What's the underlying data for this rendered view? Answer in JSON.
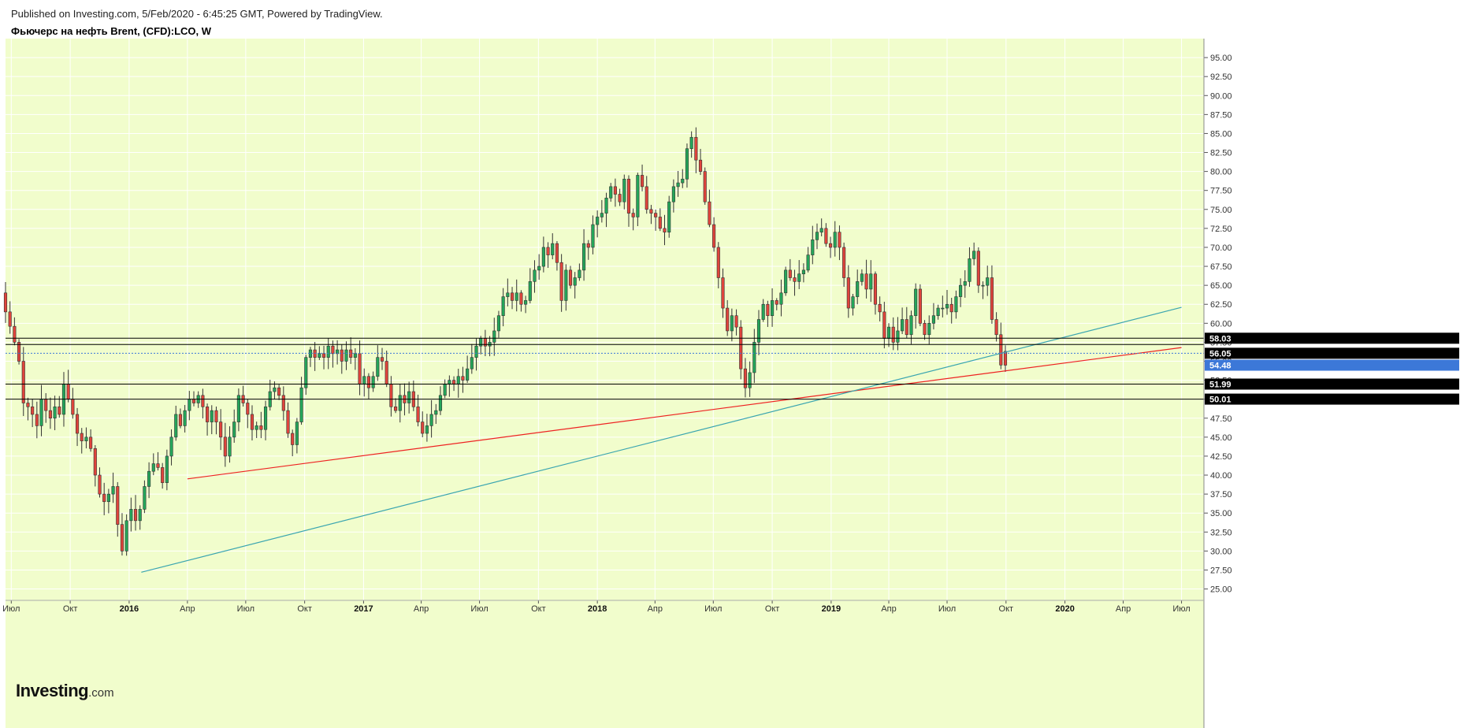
{
  "header": {
    "published": "Published on Investing.com, 5/Feb/2020 - 6:45:25 GMT, Powered by TradingView.",
    "title": "Фьючерс на нефть Brent, (CFD):LCO, W"
  },
  "logo": {
    "brand": "Investing",
    "suffix": ".com"
  },
  "colors": {
    "background": "#f1fdcc",
    "up": "#24a65a",
    "down": "#e0443c",
    "trend_red": "#ee2222",
    "trend_teal": "#3aa5b0",
    "level": "#000000",
    "current_price": "#3c78d8"
  },
  "chart_data": {
    "type": "candlestick",
    "x_ticks": [
      {
        "date": "2015-07-01",
        "label": "Июл",
        "year": false
      },
      {
        "date": "2015-10-01",
        "label": "Окт",
        "year": false
      },
      {
        "date": "2016-01-01",
        "label": "2016",
        "year": true
      },
      {
        "date": "2016-04-01",
        "label": "Апр",
        "year": false
      },
      {
        "date": "2016-07-01",
        "label": "Июл",
        "year": false
      },
      {
        "date": "2016-10-01",
        "label": "Окт",
        "year": false
      },
      {
        "date": "2017-01-01",
        "label": "2017",
        "year": true
      },
      {
        "date": "2017-04-01",
        "label": "Апр",
        "year": false
      },
      {
        "date": "2017-07-01",
        "label": "Июл",
        "year": false
      },
      {
        "date": "2017-10-01",
        "label": "Окт",
        "year": false
      },
      {
        "date": "2018-01-01",
        "label": "2018",
        "year": true
      },
      {
        "date": "2018-04-01",
        "label": "Апр",
        "year": false
      },
      {
        "date": "2018-07-01",
        "label": "Июл",
        "year": false
      },
      {
        "date": "2018-10-01",
        "label": "Окт",
        "year": false
      },
      {
        "date": "2019-01-01",
        "label": "2019",
        "year": true
      },
      {
        "date": "2019-04-01",
        "label": "Апр",
        "year": false
      },
      {
        "date": "2019-07-01",
        "label": "Июл",
        "year": false
      },
      {
        "date": "2019-10-01",
        "label": "Окт",
        "year": false
      },
      {
        "date": "2020-01-01",
        "label": "2020",
        "year": true
      },
      {
        "date": "2020-04-01",
        "label": "Апр",
        "year": false
      },
      {
        "date": "2020-07-01",
        "label": "Июл",
        "year": false
      }
    ],
    "x_range": [
      "2015-06-22",
      "2020-08-05"
    ],
    "y_range": [
      23.5,
      97.5
    ],
    "y_ticks": [
      "25.00",
      "27.50",
      "30.00",
      "32.50",
      "35.00",
      "37.50",
      "40.00",
      "42.50",
      "45.00",
      "47.50",
      "50.00",
      "52.50",
      "55.00",
      "57.50",
      "60.00",
      "62.50",
      "65.00",
      "67.50",
      "70.00",
      "72.50",
      "75.00",
      "77.50",
      "80.00",
      "82.50",
      "85.00",
      "87.50",
      "90.00",
      "92.50",
      "95.00"
    ],
    "closes": [
      61.5,
      59.6,
      57.5,
      55.0,
      49.5,
      49.0,
      48.0,
      46.5,
      50.0,
      48.5,
      47.5,
      49.0,
      48.0,
      52.0,
      50.0,
      48.0,
      45.5,
      44.5,
      45.0,
      43.5,
      40.0,
      37.5,
      36.5,
      37.5,
      38.5,
      33.5,
      30.0,
      34.0,
      35.5,
      34.0,
      35.5,
      38.5,
      40.5,
      41.5,
      41.0,
      39.0,
      42.5,
      45.0,
      48.0,
      46.5,
      48.5,
      50.0,
      49.5,
      50.5,
      49.0,
      47.0,
      48.5,
      47.0,
      45.0,
      42.5,
      45.0,
      47.0,
      50.5,
      49.5,
      48.0,
      46.0,
      46.5,
      46.0,
      49.0,
      51.0,
      51.5,
      50.5,
      48.5,
      45.5,
      44.0,
      47.0,
      51.5,
      55.5,
      56.5,
      55.5,
      56.0,
      55.5,
      57.0,
      56.0,
      56.5,
      55.0,
      56.5,
      55.5,
      56.0,
      52.0,
      53.0,
      51.5,
      53.0,
      55.5,
      55.0,
      52.0,
      49.0,
      48.5,
      50.5,
      49.5,
      51.0,
      49.0,
      47.0,
      45.5,
      46.5,
      48.0,
      48.5,
      50.5,
      52.0,
      52.5,
      52.0,
      53.0,
      52.5,
      54.0,
      55.5,
      57.0,
      58.0,
      57.0,
      57.5,
      59.0,
      61.0,
      63.5,
      64.0,
      63.0,
      64.0,
      62.5,
      63.0,
      65.5,
      67.0,
      67.5,
      70.0,
      69.0,
      70.5,
      68.0,
      63.0,
      67.0,
      65.0,
      66.0,
      67.0,
      70.5,
      70.0,
      73.0,
      74.0,
      74.5,
      76.5,
      78.0,
      77.0,
      76.0,
      79.0,
      74.5,
      74.0,
      79.5,
      78.0,
      75.0,
      74.5,
      74.0,
      72.5,
      72.0,
      76.0,
      78.0,
      78.5,
      79.0,
      83.0,
      84.5,
      81.5,
      80.0,
      76.0,
      73.0,
      70.0,
      66.0,
      62.0,
      59.0,
      61.0,
      59.5,
      54.0,
      51.5,
      53.5,
      57.5,
      60.5,
      62.5,
      61.0,
      63.0,
      62.5,
      64.0,
      67.0,
      66.0,
      65.5,
      66.5,
      67.0,
      69.0,
      71.0,
      72.0,
      72.5,
      70.5,
      70.0,
      72.0,
      70.0,
      66.0,
      62.0,
      63.5,
      65.5,
      66.5,
      64.5,
      66.5,
      62.5,
      61.5,
      58.0,
      59.5,
      57.5,
      59.0,
      60.5,
      58.5,
      61.0,
      64.5,
      60.0,
      58.5,
      60.0,
      61.0,
      62.0,
      62.0,
      62.5,
      61.5,
      63.5,
      65.0,
      65.5,
      68.5,
      69.5,
      65.0,
      65.0,
      66.0,
      60.5,
      58.5,
      54.5
    ],
    "last_candle": {
      "open": 56.3,
      "high": 57.1,
      "low": 53.6,
      "close": 54.48
    },
    "levels": [
      {
        "value": "58.03",
        "style": "solid"
      },
      {
        "value": "56.05",
        "style": "dotted"
      },
      {
        "value": "51.99",
        "style": "solid"
      },
      {
        "value": "50.01",
        "style": "solid"
      }
    ],
    "current_price": "54.48",
    "trendlines": [
      {
        "name": "red",
        "points": [
          [
            "2016-04-01",
            39.5
          ],
          [
            "2020-07-01",
            56.8
          ]
        ]
      },
      {
        "name": "teal",
        "points": [
          [
            "2016-01-20",
            27.2
          ],
          [
            "2020-07-01",
            62.1
          ]
        ]
      }
    ]
  }
}
